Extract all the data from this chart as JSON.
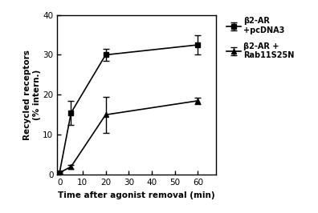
{
  "series1": {
    "label": "β2-AR\n+pcDNA3",
    "x": [
      0,
      5,
      20,
      60
    ],
    "y": [
      0.5,
      15.5,
      30.0,
      32.5
    ],
    "yerr": [
      0.3,
      3.0,
      1.5,
      2.5
    ],
    "marker": "s",
    "color": "#000000",
    "linestyle": "-"
  },
  "series2": {
    "label": "β2-AR +\nRab11S25N",
    "x": [
      0,
      5,
      20,
      60
    ],
    "y": [
      0.5,
      2.0,
      15.0,
      18.5
    ],
    "yerr": [
      0.3,
      0.5,
      4.5,
      0.8
    ],
    "marker": "^",
    "color": "#000000",
    "linestyle": "-"
  },
  "xlabel": "Time after agonist removal (min)",
  "ylabel": "Recycled receptors\n(% intern.)",
  "xlim": [
    -1,
    68
  ],
  "ylim": [
    0,
    40
  ],
  "xticks": [
    0,
    10,
    20,
    30,
    40,
    50,
    60
  ],
  "yticks": [
    0,
    10,
    20,
    30,
    40
  ],
  "background_color": "#ffffff",
  "capsize": 3,
  "markersize": 5,
  "linewidth": 1.2
}
